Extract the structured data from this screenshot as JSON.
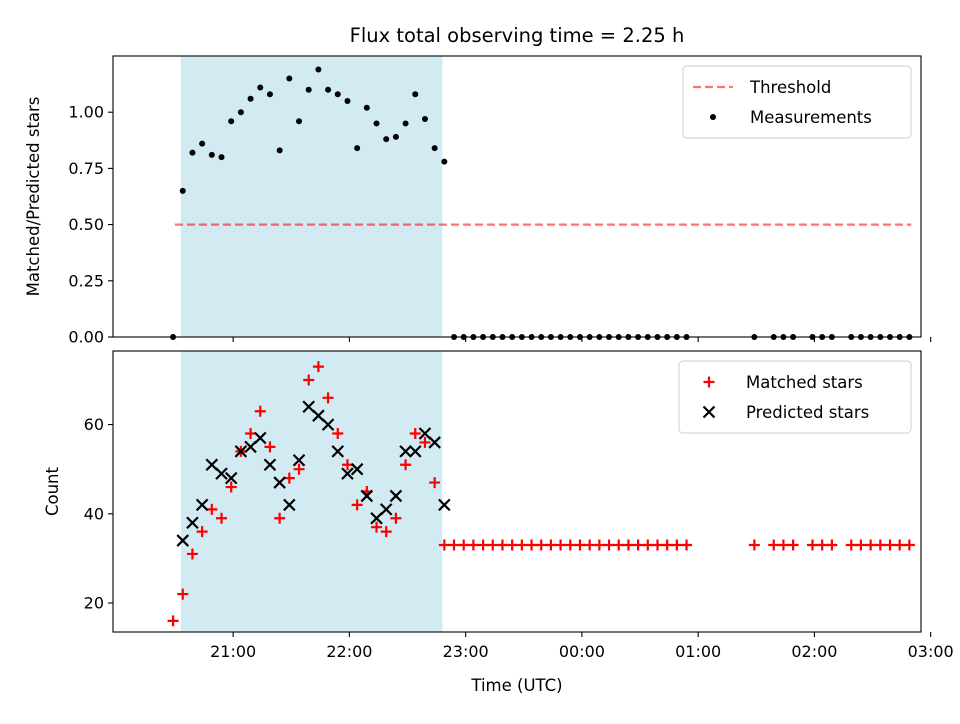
{
  "chart_data": {
    "title": "Flux total observing time = 2.25 h",
    "xlabel": "Time (UTC)",
    "x_tick_labels": [
      "21:00",
      "22:00",
      "23:00",
      "00:00",
      "01:00",
      "02:00",
      "03:00"
    ],
    "observing_window": {
      "start": "20:33",
      "end": "22:48",
      "color": "#add8e6"
    },
    "panels": [
      {
        "type": "scatter",
        "ylabel": "Matched/Predicted stars",
        "ylim": [
          0,
          1.25
        ],
        "y_ticks": [
          "0.00",
          "0.25",
          "0.50",
          "0.75",
          "1.00"
        ],
        "legend_position": "top-right",
        "threshold": {
          "name": "Threshold",
          "value": 0.5,
          "x_range": [
            "20:30",
            "02:50"
          ],
          "color": "#ff0000",
          "style": "dashed"
        },
        "series": [
          {
            "name": "Measurements",
            "color": "#000000",
            "marker": "dot",
            "points": [
              [
                "20:29",
                0.0
              ],
              [
                "20:34",
                0.65
              ],
              [
                "20:39",
                0.82
              ],
              [
                "20:44",
                0.86
              ],
              [
                "20:49",
                0.81
              ],
              [
                "20:54",
                0.8
              ],
              [
                "20:59",
                0.96
              ],
              [
                "21:04",
                1.0
              ],
              [
                "21:09",
                1.06
              ],
              [
                "21:14",
                1.11
              ],
              [
                "21:19",
                1.08
              ],
              [
                "21:24",
                0.83
              ],
              [
                "21:29",
                1.15
              ],
              [
                "21:34",
                0.96
              ],
              [
                "21:39",
                1.1
              ],
              [
                "21:44",
                1.19
              ],
              [
                "21:49",
                1.1
              ],
              [
                "21:54",
                1.08
              ],
              [
                "21:59",
                1.05
              ],
              [
                "22:04",
                0.84
              ],
              [
                "22:09",
                1.02
              ],
              [
                "22:14",
                0.95
              ],
              [
                "22:19",
                0.88
              ],
              [
                "22:24",
                0.89
              ],
              [
                "22:29",
                0.95
              ],
              [
                "22:34",
                1.08
              ],
              [
                "22:39",
                0.97
              ],
              [
                "22:44",
                0.84
              ],
              [
                "22:49",
                0.78
              ],
              [
                "22:54",
                0.0
              ],
              [
                "22:59",
                0.0
              ],
              [
                "23:04",
                0.0
              ],
              [
                "23:09",
                0.0
              ],
              [
                "23:14",
                0.0
              ],
              [
                "23:19",
                0.0
              ],
              [
                "23:24",
                0.0
              ],
              [
                "23:29",
                0.0
              ],
              [
                "23:34",
                0.0
              ],
              [
                "23:39",
                0.0
              ],
              [
                "23:44",
                0.0
              ],
              [
                "23:49",
                0.0
              ],
              [
                "23:54",
                0.0
              ],
              [
                "23:59",
                0.0
              ],
              [
                "00:04",
                0.0
              ],
              [
                "00:09",
                0.0
              ],
              [
                "00:14",
                0.0
              ],
              [
                "00:19",
                0.0
              ],
              [
                "00:24",
                0.0
              ],
              [
                "00:29",
                0.0
              ],
              [
                "00:34",
                0.0
              ],
              [
                "00:39",
                0.0
              ],
              [
                "00:44",
                0.0
              ],
              [
                "00:49",
                0.0
              ],
              [
                "00:54",
                0.0
              ],
              [
                "01:29",
                0.0
              ],
              [
                "01:39",
                0.0
              ],
              [
                "01:44",
                0.0
              ],
              [
                "01:49",
                0.0
              ],
              [
                "01:59",
                0.0
              ],
              [
                "02:04",
                0.0
              ],
              [
                "02:09",
                0.0
              ],
              [
                "02:19",
                0.0
              ],
              [
                "02:24",
                0.0
              ],
              [
                "02:29",
                0.0
              ],
              [
                "02:34",
                0.0
              ],
              [
                "02:39",
                0.0
              ],
              [
                "02:44",
                0.0
              ],
              [
                "02:49",
                0.0
              ]
            ]
          }
        ]
      },
      {
        "type": "scatter",
        "ylabel": "Count",
        "ylim": [
          13.5,
          76.5
        ],
        "y_ticks": [
          "20",
          "40",
          "60"
        ],
        "legend_position": "top-right",
        "series": [
          {
            "name": "Matched stars",
            "color": "#ff0000",
            "marker": "plus",
            "points": [
              [
                "20:29",
                16
              ],
              [
                "20:34",
                22
              ],
              [
                "20:39",
                31
              ],
              [
                "20:44",
                36
              ],
              [
                "20:49",
                41
              ],
              [
                "20:54",
                39
              ],
              [
                "20:59",
                46
              ],
              [
                "21:04",
                54
              ],
              [
                "21:09",
                58
              ],
              [
                "21:14",
                63
              ],
              [
                "21:19",
                55
              ],
              [
                "21:24",
                39
              ],
              [
                "21:29",
                48
              ],
              [
                "21:34",
                50
              ],
              [
                "21:39",
                70
              ],
              [
                "21:44",
                73
              ],
              [
                "21:49",
                66
              ],
              [
                "21:54",
                58
              ],
              [
                "21:59",
                51
              ],
              [
                "22:04",
                42
              ],
              [
                "22:09",
                45
              ],
              [
                "22:14",
                37
              ],
              [
                "22:19",
                36
              ],
              [
                "22:24",
                39
              ],
              [
                "22:29",
                51
              ],
              [
                "22:34",
                58
              ],
              [
                "22:39",
                56
              ],
              [
                "22:44",
                47
              ],
              [
                "22:49",
                33
              ],
              [
                "22:54",
                33
              ],
              [
                "22:59",
                33
              ],
              [
                "23:04",
                33
              ],
              [
                "23:09",
                33
              ],
              [
                "23:14",
                33
              ],
              [
                "23:19",
                33
              ],
              [
                "23:24",
                33
              ],
              [
                "23:29",
                33
              ],
              [
                "23:34",
                33
              ],
              [
                "23:39",
                33
              ],
              [
                "23:44",
                33
              ],
              [
                "23:49",
                33
              ],
              [
                "23:54",
                33
              ],
              [
                "23:59",
                33
              ],
              [
                "00:04",
                33
              ],
              [
                "00:09",
                33
              ],
              [
                "00:14",
                33
              ],
              [
                "00:19",
                33
              ],
              [
                "00:24",
                33
              ],
              [
                "00:29",
                33
              ],
              [
                "00:34",
                33
              ],
              [
                "00:39",
                33
              ],
              [
                "00:44",
                33
              ],
              [
                "00:49",
                33
              ],
              [
                "00:54",
                33
              ],
              [
                "01:29",
                33
              ],
              [
                "01:39",
                33
              ],
              [
                "01:44",
                33
              ],
              [
                "01:49",
                33
              ],
              [
                "01:59",
                33
              ],
              [
                "02:04",
                33
              ],
              [
                "02:09",
                33
              ],
              [
                "02:19",
                33
              ],
              [
                "02:24",
                33
              ],
              [
                "02:29",
                33
              ],
              [
                "02:34",
                33
              ],
              [
                "02:39",
                33
              ],
              [
                "02:44",
                33
              ],
              [
                "02:49",
                33
              ]
            ]
          },
          {
            "name": "Predicted stars",
            "color": "#000000",
            "marker": "cross",
            "points": [
              [
                "20:34",
                34
              ],
              [
                "20:39",
                38
              ],
              [
                "20:44",
                42
              ],
              [
                "20:49",
                51
              ],
              [
                "20:54",
                49
              ],
              [
                "20:59",
                48
              ],
              [
                "21:04",
                54
              ],
              [
                "21:09",
                55
              ],
              [
                "21:14",
                57
              ],
              [
                "21:19",
                51
              ],
              [
                "21:24",
                47
              ],
              [
                "21:29",
                42
              ],
              [
                "21:34",
                52
              ],
              [
                "21:39",
                64
              ],
              [
                "21:44",
                62
              ],
              [
                "21:49",
                60
              ],
              [
                "21:54",
                54
              ],
              [
                "21:59",
                49
              ],
              [
                "22:04",
                50
              ],
              [
                "22:09",
                44
              ],
              [
                "22:14",
                39
              ],
              [
                "22:19",
                41
              ],
              [
                "22:24",
                44
              ],
              [
                "22:29",
                54
              ],
              [
                "22:34",
                54
              ],
              [
                "22:39",
                58
              ],
              [
                "22:44",
                56
              ],
              [
                "22:49",
                42
              ]
            ]
          }
        ]
      }
    ]
  }
}
